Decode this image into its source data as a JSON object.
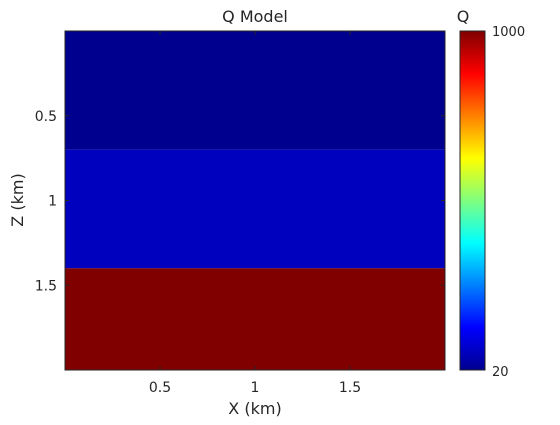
{
  "chart_data": {
    "type": "heatmap",
    "title": "Q Model",
    "xlabel": "X (km)",
    "ylabel": "Z (km)",
    "xlim": [
      0,
      2
    ],
    "ylim": [
      0,
      2
    ],
    "y_reversed": true,
    "x_ticks": [
      0.5,
      1,
      1.5
    ],
    "x_tick_labels": [
      "0.5",
      "1",
      "1.5"
    ],
    "y_ticks": [
      0.5,
      1,
      1.5
    ],
    "y_tick_labels": [
      "0.5",
      "1",
      "1.5"
    ],
    "layers": [
      {
        "z_top": 0.0,
        "z_bottom": 0.7,
        "q": 20,
        "color": "#00008f"
      },
      {
        "z_top": 0.7,
        "z_bottom": 1.4,
        "q": 80,
        "color": "#0000bf"
      },
      {
        "z_top": 1.4,
        "z_bottom": 2.0,
        "q": 1000,
        "color": "#800000"
      }
    ],
    "colorbar": {
      "label": "Q",
      "min": 20,
      "max": 1000,
      "min_label": "20",
      "max_label": "1000",
      "colormap": "jet"
    },
    "grid": false
  }
}
